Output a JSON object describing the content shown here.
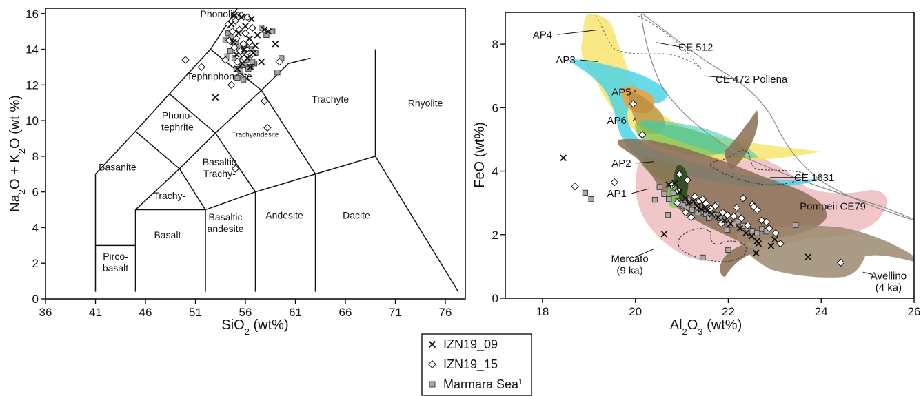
{
  "legend": {
    "items": [
      {
        "label": "IZN19_09",
        "marker": "cross"
      },
      {
        "label": "IZN19_15",
        "marker": "diamond"
      },
      {
        "label": "Marmara Sea",
        "sup": "1",
        "marker": "square"
      }
    ]
  },
  "chart_data": [
    {
      "type": "scatter",
      "name": "TAS diagram",
      "xlabel": "SiO2 (wt%)",
      "ylabel": "Na2O + K2O (wt %)",
      "xlim": [
        36,
        78
      ],
      "ylim": [
        0,
        16.3
      ],
      "xticks": [
        36,
        41,
        46,
        51,
        56,
        61,
        66,
        71,
        76
      ],
      "yticks": [
        0,
        2,
        4,
        6,
        8,
        10,
        12,
        14,
        16
      ],
      "fields": [
        {
          "name": "Phonolite",
          "lines": [
            "Phonolite"
          ],
          "at": [
            53.5,
            15.8
          ]
        },
        {
          "name": "Tephriphonolite",
          "lines": [
            "Tephriphonolite"
          ],
          "at": [
            53.4,
            12.3
          ]
        },
        {
          "name": "Phonotephrite",
          "lines": [
            "Phono-",
            "tephrite"
          ],
          "at": [
            49.2,
            10.1
          ]
        },
        {
          "name": "Trachyandesite",
          "lines": [
            "Trachyandesite"
          ],
          "at": [
            57.0,
            9.1
          ],
          "small": true
        },
        {
          "name": "Trachyte",
          "lines": [
            "Trachyte"
          ],
          "at": [
            64.5,
            11.0
          ]
        },
        {
          "name": "Rhyolite",
          "lines": [
            "Rhyolite"
          ],
          "at": [
            74.0,
            10.8
          ]
        },
        {
          "name": "Basanite",
          "lines": [
            "Basanite"
          ],
          "at": [
            43.2,
            7.2
          ]
        },
        {
          "name": "Basaltic Trachy-",
          "lines": [
            "Basaltic",
            "Trachy-"
          ],
          "at": [
            53.4,
            7.5
          ]
        },
        {
          "name": "Trachy-",
          "lines": [
            "Trachy-"
          ],
          "at": [
            48.4,
            5.6
          ]
        },
        {
          "name": "Basalt",
          "lines": [
            "Basalt"
          ],
          "at": [
            48.2,
            3.4
          ]
        },
        {
          "name": "Basaltic andesite",
          "lines": [
            "Basaltic",
            "andesite"
          ],
          "at": [
            54.0,
            4.4
          ]
        },
        {
          "name": "Andesite",
          "lines": [
            "Andesite"
          ],
          "at": [
            59.9,
            4.5
          ]
        },
        {
          "name": "Dacite",
          "lines": [
            "Dacite"
          ],
          "at": [
            67.1,
            4.5
          ]
        },
        {
          "name": "Pircobasalt",
          "lines": [
            "Pirco-",
            "basalt"
          ],
          "at": [
            43.0,
            2.2
          ]
        }
      ],
      "boundaries": [
        [
          [
            41,
            0.4
          ],
          [
            41,
            7
          ],
          [
            45,
            9.4
          ],
          [
            48.4,
            11.5
          ],
          [
            52.5,
            14
          ],
          [
            55.2,
            16.3
          ]
        ],
        [
          [
            41,
            3
          ],
          [
            45,
            3
          ]
        ],
        [
          [
            45,
            0.4
          ],
          [
            45,
            5
          ],
          [
            49.4,
            7.3
          ],
          [
            53,
            9.3
          ],
          [
            57.6,
            11.7
          ],
          [
            60.3,
            13.2
          ]
        ],
        [
          [
            45,
            5
          ],
          [
            52,
            5
          ],
          [
            57,
            6
          ],
          [
            63,
            7
          ],
          [
            69,
            8
          ],
          [
            77.3,
            0.4
          ]
        ],
        [
          [
            52,
            0.4
          ],
          [
            52,
            5
          ],
          [
            49.4,
            7.3
          ],
          [
            45,
            9.4
          ]
        ],
        [
          [
            57,
            0.4
          ],
          [
            57,
            6
          ],
          [
            53,
            9.3
          ],
          [
            48.4,
            11.5
          ]
        ],
        [
          [
            63,
            0.4
          ],
          [
            63,
            7
          ],
          [
            57.6,
            11.7
          ],
          [
            52.5,
            14
          ]
        ],
        [
          [
            69,
            8
          ],
          [
            69,
            14
          ]
        ],
        [
          [
            60.3,
            13.2
          ],
          [
            62.5,
            13.5
          ]
        ]
      ],
      "series": [
        {
          "name": "IZN19_09",
          "marker": "cross",
          "x": [
            54.9,
            55.6,
            56.6,
            57.9,
            58.3,
            54.6,
            56.0,
            57.2,
            55.3,
            56.4,
            54.8,
            57.0,
            55.9,
            56.8,
            55.1,
            56.2,
            57.6,
            59.0,
            55.7,
            56.5,
            53.0,
            55.2
          ],
          "y": [
            15.9,
            15.8,
            15.7,
            15.1,
            15.0,
            15.4,
            15.3,
            14.8,
            14.9,
            14.6,
            14.4,
            14.2,
            14.0,
            13.8,
            13.7,
            13.5,
            13.3,
            14.3,
            13.2,
            13.0,
            11.3,
            12.9
          ]
        },
        {
          "name": "IZN19_15",
          "marker": "diamond",
          "x": [
            50.0,
            51.6,
            54.0,
            54.3,
            55.0,
            55.6,
            56.2,
            54.7,
            55.4,
            56.0,
            56.7,
            54.4,
            55.1,
            55.8,
            56.4,
            54.9,
            55.5,
            56.1,
            55.3,
            55.9,
            56.6,
            55.2,
            57.9,
            58.2,
            59.4,
            55.0,
            54.6
          ],
          "y": [
            13.4,
            13.0,
            13.4,
            15.4,
            15.6,
            15.9,
            15.8,
            15.0,
            15.1,
            14.9,
            15.2,
            14.5,
            14.6,
            14.3,
            14.4,
            14.1,
            13.9,
            14.0,
            13.6,
            13.5,
            13.7,
            13.3,
            11.1,
            9.6,
            13.3,
            7.3,
            12.0
          ]
        },
        {
          "name": "Marmara Sea",
          "marker": "square",
          "x": [
            54.0,
            54.3,
            54.6,
            55.0,
            55.4,
            55.8,
            56.2,
            56.6,
            57.0,
            54.2,
            54.5,
            54.9,
            55.3,
            55.7,
            56.1,
            56.5,
            56.9,
            55.1,
            55.5,
            55.9,
            56.3,
            56.7,
            57.6,
            58.1,
            58.7,
            59.2,
            59.6,
            55.2,
            55.8
          ],
          "y": [
            14.5,
            14.9,
            14.7,
            14.4,
            14.1,
            13.9,
            14.2,
            14.0,
            13.8,
            13.6,
            13.9,
            13.5,
            13.3,
            13.1,
            13.4,
            13.0,
            13.2,
            12.9,
            12.8,
            13.1,
            12.9,
            13.3,
            15.2,
            14.8,
            15.0,
            12.7,
            13.5,
            12.4,
            12.3
          ]
        }
      ]
    },
    {
      "type": "scatter",
      "name": "FeO vs Al2O3",
      "xlabel": "Al2O3 (wt%)",
      "ylabel": "FeO (wt%)",
      "xlim": [
        17.2,
        26.0
      ],
      "ylim": [
        0,
        9.0
      ],
      "xticks": [
        18,
        20,
        22,
        24,
        26
      ],
      "yticks": [
        0,
        2,
        4,
        6,
        8
      ],
      "fields": [
        {
          "name": "AP4",
          "at": [
            18.0,
            8.3
          ],
          "leader": [
            [
              18.32,
              8.3
            ],
            [
              19.2,
              8.45
            ]
          ]
        },
        {
          "name": "AP3",
          "at": [
            18.5,
            7.5
          ],
          "leader": [
            [
              18.82,
              7.5
            ],
            [
              19.2,
              7.45
            ]
          ]
        },
        {
          "name": "AP5",
          "at": [
            19.7,
            6.5
          ],
          "leader": [
            [
              19.98,
              6.5
            ],
            [
              20.0,
              6.55
            ]
          ]
        },
        {
          "name": "AP6",
          "at": [
            19.6,
            5.6
          ],
          "leader": [
            [
              19.95,
              5.6
            ],
            [
              20.0,
              5.65
            ]
          ]
        },
        {
          "name": "AP2",
          "at": [
            19.7,
            4.25
          ],
          "leader": [
            [
              20.0,
              4.25
            ],
            [
              20.4,
              4.3
            ]
          ]
        },
        {
          "name": "AP1",
          "at": [
            19.6,
            3.3
          ],
          "leader": [
            [
              19.92,
              3.3
            ],
            [
              20.3,
              3.45
            ]
          ]
        },
        {
          "name": "CE 512",
          "at": [
            21.3,
            7.9
          ],
          "leader": [
            [
              20.45,
              8.05
            ],
            [
              21.03,
              7.9
            ]
          ]
        },
        {
          "name": "CE 472 Pollena",
          "at": [
            22.5,
            6.9
          ],
          "leader": [
            [
              21.5,
              7.0
            ],
            [
              22.22,
              6.9
            ]
          ]
        },
        {
          "name": "CE 1631",
          "at": [
            23.85,
            3.8
          ],
          "leader": [
            [
              22.9,
              3.8
            ],
            [
              23.58,
              3.8
            ]
          ]
        },
        {
          "name": "Pompeii CE79",
          "at": [
            24.25,
            2.9
          ]
        },
        {
          "name": "Mercato",
          "sub": "(9 ka)",
          "at": [
            19.88,
            1.25
          ],
          "leader": [
            [
              20.0,
              1.3
            ],
            [
              20.4,
              1.55
            ]
          ]
        },
        {
          "name": "Avellino",
          "sub": "(4 ka)",
          "at": [
            25.45,
            0.7
          ],
          "leader": [
            [
              24.9,
              0.82
            ],
            [
              25.1,
              0.75
            ]
          ]
        }
      ],
      "series": [
        {
          "name": "IZN19_09",
          "marker": "cross",
          "x": [
            18.45,
            20.72,
            20.62,
            20.95,
            21.08,
            21.15,
            21.32,
            21.42,
            21.55,
            21.65,
            21.78,
            21.92,
            22.05,
            22.25,
            22.38,
            22.5,
            22.62,
            22.65,
            22.92,
            23.0,
            23.72,
            20.85,
            21.25,
            21.5,
            22.6
          ],
          "y": [
            4.42,
            3.58,
            2.02,
            3.35,
            3.15,
            3.0,
            2.9,
            2.8,
            2.75,
            2.65,
            2.55,
            2.45,
            2.35,
            2.2,
            2.05,
            1.95,
            1.8,
            1.72,
            1.65,
            1.85,
            1.3,
            3.62,
            3.05,
            2.85,
            1.42
          ]
        },
        {
          "name": "IZN19_15",
          "marker": "diamond",
          "x": [
            18.7,
            19.55,
            19.95,
            20.15,
            20.95,
            20.78,
            20.92,
            21.12,
            21.28,
            21.38,
            21.52,
            21.62,
            21.72,
            21.88,
            21.98,
            22.12,
            22.28,
            22.32,
            22.42,
            22.52,
            22.62,
            22.72,
            22.88,
            23.02,
            23.12,
            24.42,
            21.08,
            21.45,
            21.85,
            22.18,
            22.55,
            22.82,
            21.2,
            20.9
          ],
          "y": [
            3.52,
            3.65,
            6.12,
            5.15,
            3.9,
            3.55,
            3.38,
            3.72,
            3.2,
            3.05,
            2.98,
            2.82,
            2.9,
            2.7,
            2.62,
            2.58,
            2.52,
            3.15,
            2.3,
            2.95,
            2.78,
            2.45,
            2.2,
            2.05,
            1.72,
            1.12,
            2.7,
            3.12,
            2.35,
            2.85,
            2.88,
            2.4,
            2.55,
            3.0
          ]
        },
        {
          "name": "Marmara Sea",
          "marker": "square",
          "x": [
            18.92,
            19.05,
            20.42,
            20.52,
            20.62,
            20.72,
            20.82,
            20.92,
            21.02,
            21.12,
            21.22,
            21.32,
            21.42,
            21.52,
            21.62,
            21.72,
            21.82,
            21.92,
            22.02,
            22.12,
            22.22,
            22.32,
            22.42,
            22.52,
            22.62,
            22.72,
            22.82,
            21.45,
            22.0,
            23.45,
            20.7,
            20.95,
            21.18,
            21.36,
            21.58,
            21.76,
            21.98,
            22.2
          ],
          "y": [
            3.32,
            3.12,
            3.1,
            3.5,
            3.28,
            3.12,
            3.32,
            3.05,
            2.92,
            2.85,
            2.78,
            2.88,
            2.72,
            2.65,
            2.58,
            2.62,
            2.52,
            2.45,
            2.38,
            2.32,
            2.42,
            2.28,
            2.2,
            2.12,
            2.05,
            2.18,
            2.1,
            1.28,
            1.52,
            2.3,
            2.62,
            2.98,
            3.08,
            2.68,
            2.52,
            2.95,
            2.15,
            2.6
          ]
        }
      ]
    }
  ]
}
